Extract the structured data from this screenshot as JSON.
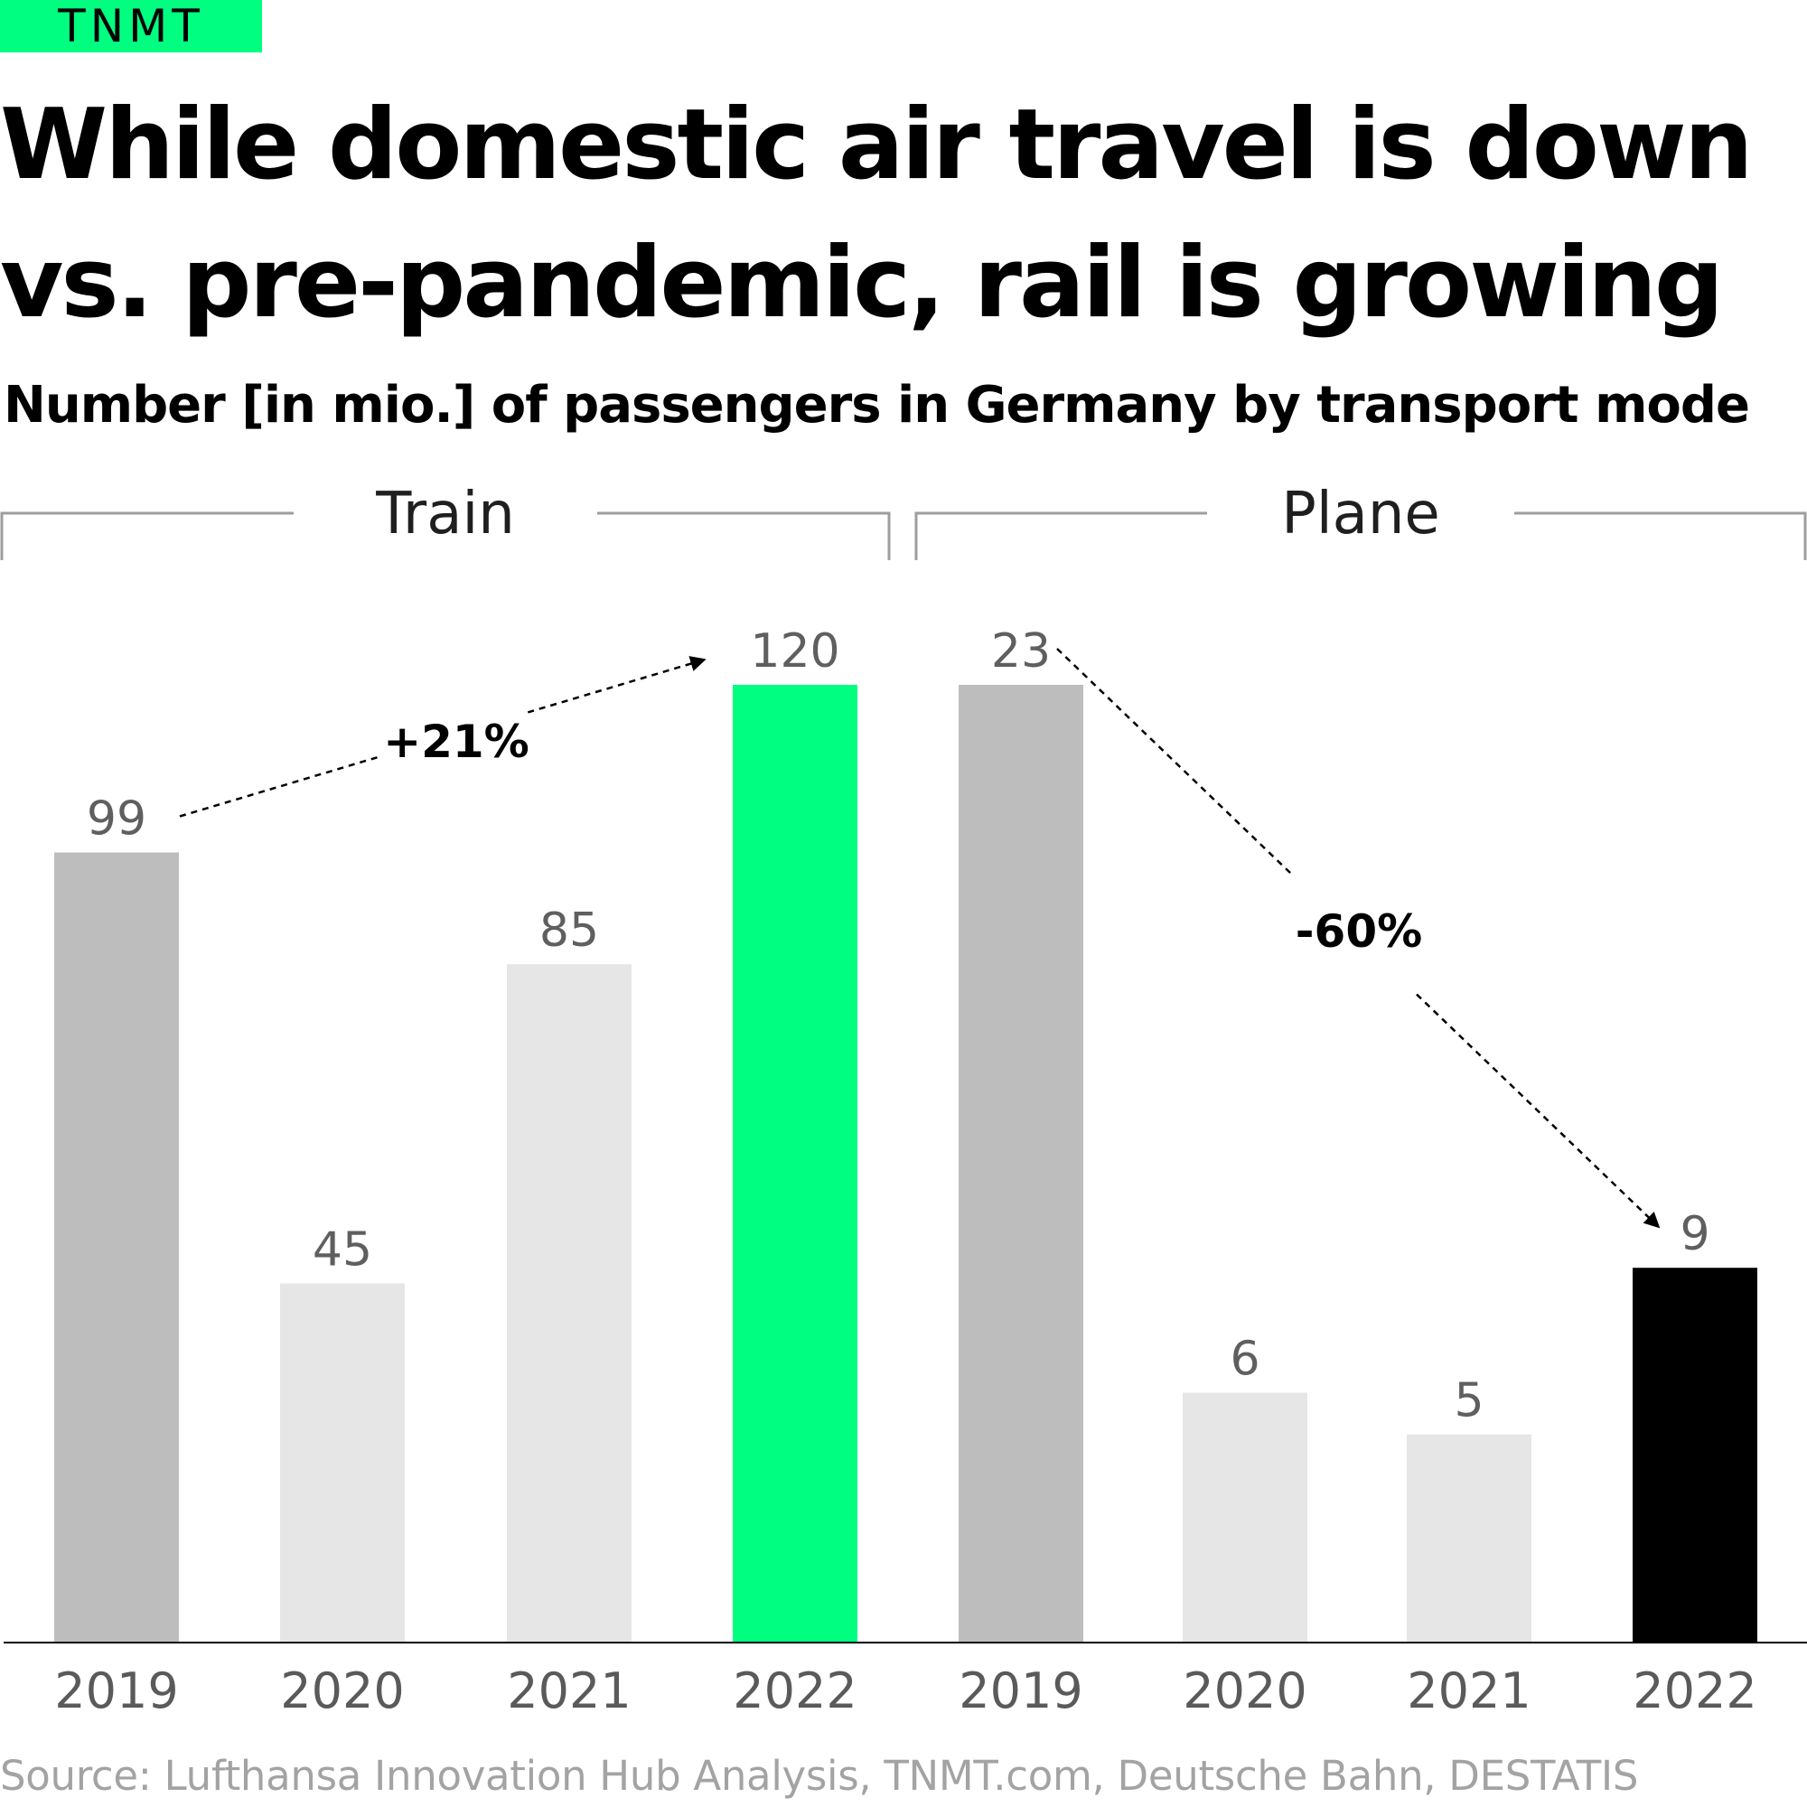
{
  "brand": {
    "logo_text": "TNMT",
    "accent": "#00ff80"
  },
  "title_lines": [
    "While domestic air travel is down",
    "vs. pre-pandemic, rail is growing"
  ],
  "subtitle": "Number [in mio.] of passengers in Germany by transport mode",
  "source": "Source: Lufthansa Innovation Hub Analysis, TNMT.com, Deutsche Bahn, DESTATIS",
  "chart_data": [
    {
      "type": "bar",
      "group": "Train",
      "categories": [
        "2019",
        "2020",
        "2021",
        "2022"
      ],
      "values": [
        99,
        45,
        85,
        120
      ],
      "colors": [
        "#bdbdbd",
        "#e6e6e6",
        "#e6e6e6",
        "#00ff80"
      ],
      "ylim": [
        0,
        120
      ],
      "annotation": {
        "text": "+21%",
        "from": "2019",
        "to": "2022"
      }
    },
    {
      "type": "bar",
      "group": "Plane",
      "categories": [
        "2019",
        "2020",
        "2021",
        "2022"
      ],
      "values": [
        23,
        6,
        5,
        9
      ],
      "colors": [
        "#bdbdbd",
        "#e6e6e6",
        "#e6e6e6",
        "#000000"
      ],
      "ylim": [
        0,
        23
      ],
      "annotation": {
        "text": "-60%",
        "from": "2019",
        "to": "2022"
      }
    }
  ]
}
